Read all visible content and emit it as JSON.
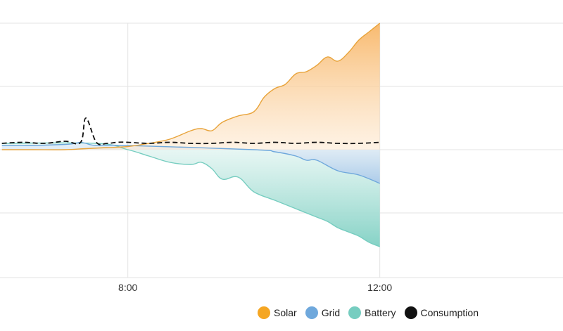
{
  "chart_data": {
    "type": "area",
    "x_ticks": [
      "8:00",
      "12:00"
    ],
    "xlim": [
      "6:00",
      "15:00"
    ],
    "y_axis_labels_visible": false,
    "grid": true,
    "legend_position": "bottom-right",
    "colors": {
      "Solar": "#f5a623",
      "Grid": "#6fa8dc",
      "Battery": "#76cdc0",
      "Consumption": "#111111"
    },
    "series": [
      {
        "name": "Solar",
        "x": [
          "6:00",
          "6:30",
          "7:00",
          "7:20",
          "7:40",
          "8:00",
          "8:20",
          "8:40",
          "9:00",
          "9:10",
          "9:20",
          "9:30",
          "9:45",
          "10:00",
          "10:10",
          "10:20",
          "10:30",
          "10:40",
          "10:50",
          "11:00",
          "11:10",
          "11:20",
          "11:30",
          "11:40",
          "11:50",
          "12:00"
        ],
        "values": [
          0,
          0,
          0,
          0.05,
          0.1,
          0.15,
          0.3,
          0.5,
          0.9,
          1.0,
          0.9,
          1.3,
          1.6,
          1.8,
          2.5,
          2.9,
          3.1,
          3.6,
          3.7,
          4.0,
          4.4,
          4.2,
          4.6,
          5.2,
          5.6,
          6.0
        ]
      },
      {
        "name": "Grid",
        "x": [
          "6:00",
          "6:15",
          "6:30",
          "7:00",
          "7:10",
          "7:15",
          "7:20",
          "7:30",
          "8:00",
          "10:00",
          "10:20",
          "10:40",
          "10:50",
          "11:00",
          "11:20",
          "11:40",
          "12:00"
        ],
        "values": [
          0.2,
          0.2,
          0.2,
          0.25,
          0.3,
          0.35,
          0.3,
          0.2,
          0.2,
          0,
          -0.1,
          -0.3,
          -0.5,
          -0.5,
          -1.0,
          -1.2,
          -1.6
        ]
      },
      {
        "name": "Battery",
        "x": [
          "6:00",
          "7:30",
          "8:00",
          "8:20",
          "8:40",
          "9:00",
          "9:10",
          "9:20",
          "9:30",
          "9:45",
          "10:00",
          "10:20",
          "10:40",
          "11:00",
          "11:10",
          "11:20",
          "11:30",
          "11:40",
          "11:50",
          "12:00"
        ],
        "values": [
          0.3,
          0.3,
          0,
          -0.3,
          -0.6,
          -0.7,
          -0.6,
          -0.9,
          -1.4,
          -1.3,
          -2.0,
          -2.4,
          -2.8,
          -3.2,
          -3.4,
          -3.7,
          -3.9,
          -4.1,
          -4.4,
          -4.6
        ]
      },
      {
        "name": "Consumption",
        "x": [
          "6:00",
          "6:20",
          "6:40",
          "7:00",
          "7:15",
          "7:20",
          "7:30",
          "7:40",
          "7:50",
          "8:00",
          "8:20",
          "8:40",
          "9:00",
          "9:20",
          "9:40",
          "10:00",
          "10:20",
          "10:40",
          "11:00",
          "11:20",
          "11:40",
          "12:00"
        ],
        "values": [
          0.3,
          0.35,
          0.3,
          0.4,
          0.35,
          1.5,
          0.35,
          0.3,
          0.35,
          0.35,
          0.3,
          0.35,
          0.3,
          0.3,
          0.35,
          0.3,
          0.35,
          0.3,
          0.35,
          0.3,
          0.3,
          0.35
        ]
      }
    ]
  },
  "legend": {
    "items": [
      {
        "label": "Solar",
        "color": "#f5a623"
      },
      {
        "label": "Grid",
        "color": "#6fa8dc"
      },
      {
        "label": "Battery",
        "color": "#76cdc0"
      },
      {
        "label": "Consumption",
        "color": "#111111"
      }
    ]
  }
}
